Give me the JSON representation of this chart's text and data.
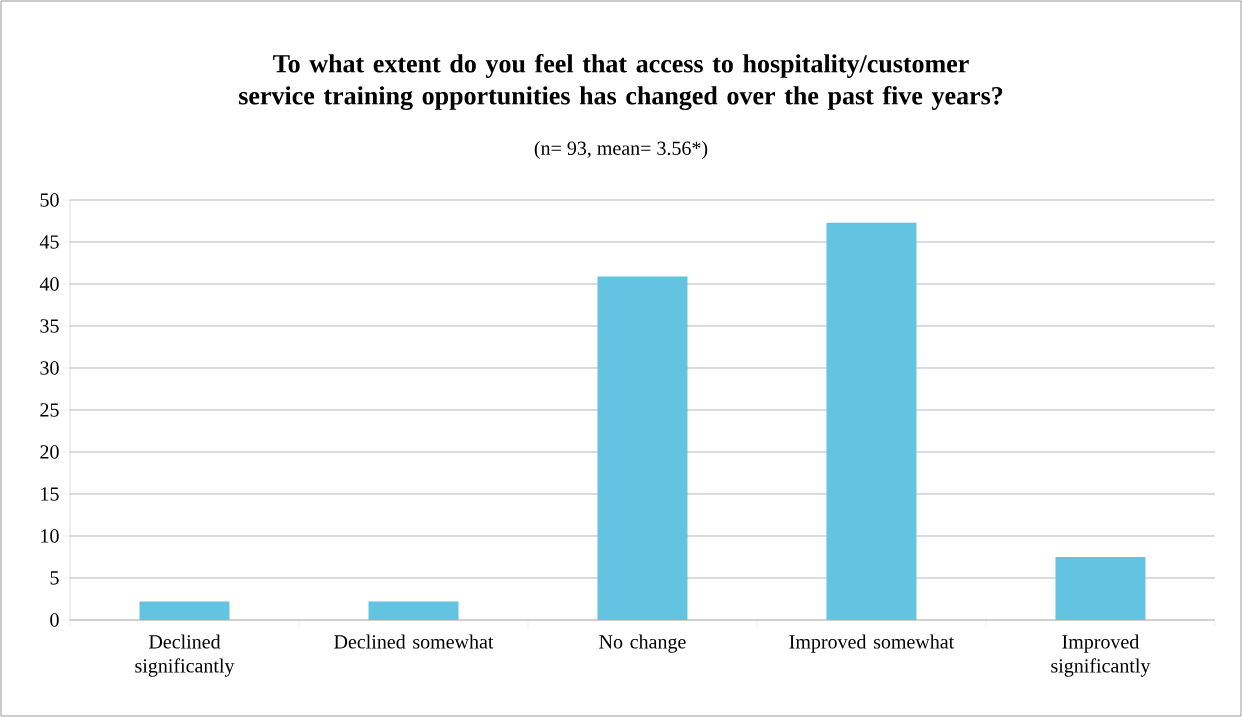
{
  "chart_data": {
    "type": "bar",
    "title": "To what extent do you feel that access to hospitality/customer service training opportunities has changed over the past five years?",
    "subtitle": "(n= 93, mean= 3.56*)",
    "categories": [
      "Declined significantly",
      "Declined somewhat",
      "No change",
      "Improved somewhat",
      "Improved significantly"
    ],
    "values": [
      2.2,
      2.2,
      40.9,
      47.3,
      7.5
    ],
    "color": "#62c4e1",
    "ylim": [
      0,
      50
    ],
    "yticks": [
      0,
      5,
      10,
      15,
      20,
      25,
      30,
      35,
      40,
      45,
      50
    ],
    "grid": "y"
  }
}
